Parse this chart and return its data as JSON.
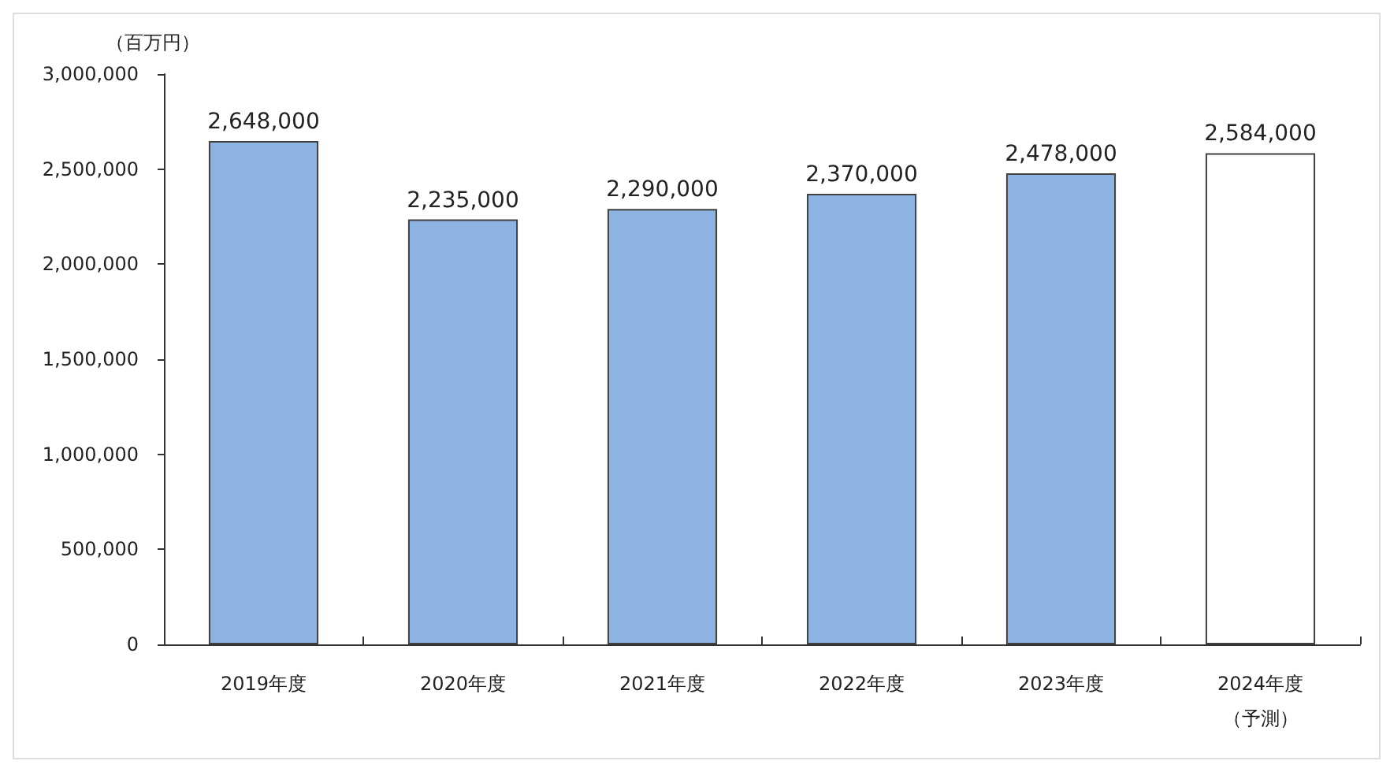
{
  "chart_data": {
    "type": "bar",
    "ylabel": "（百万円）",
    "categories": [
      "2019年度",
      "2020年度",
      "2021年度",
      "2022年度",
      "2023年度",
      "2024年度（予測）"
    ],
    "values": [
      2648000,
      2235000,
      2290000,
      2370000,
      2478000,
      2584000
    ],
    "value_labels": [
      "2,648,000",
      "2,235,000",
      "2,290,000",
      "2,370,000",
      "2,478,000",
      "2,584,000"
    ],
    "colors": [
      "#8db3e2",
      "#8db3e2",
      "#8db3e2",
      "#8db3e2",
      "#8db3e2",
      "#ffffff"
    ],
    "ylim": [
      0,
      3000000
    ],
    "yticks": [
      0,
      {
        "value": 500000,
        "label": "500,000"
      },
      {
        "value": 1000000,
        "label": "1,000,000"
      },
      {
        "value": 1500000,
        "label": "1,500,000"
      },
      {
        "value": 2000000,
        "label": "2,000,000"
      },
      {
        "value": 2500000,
        "label": "2,500,000"
      },
      {
        "value": 3000000,
        "label": "3,000,000"
      }
    ],
    "grid": false
  }
}
